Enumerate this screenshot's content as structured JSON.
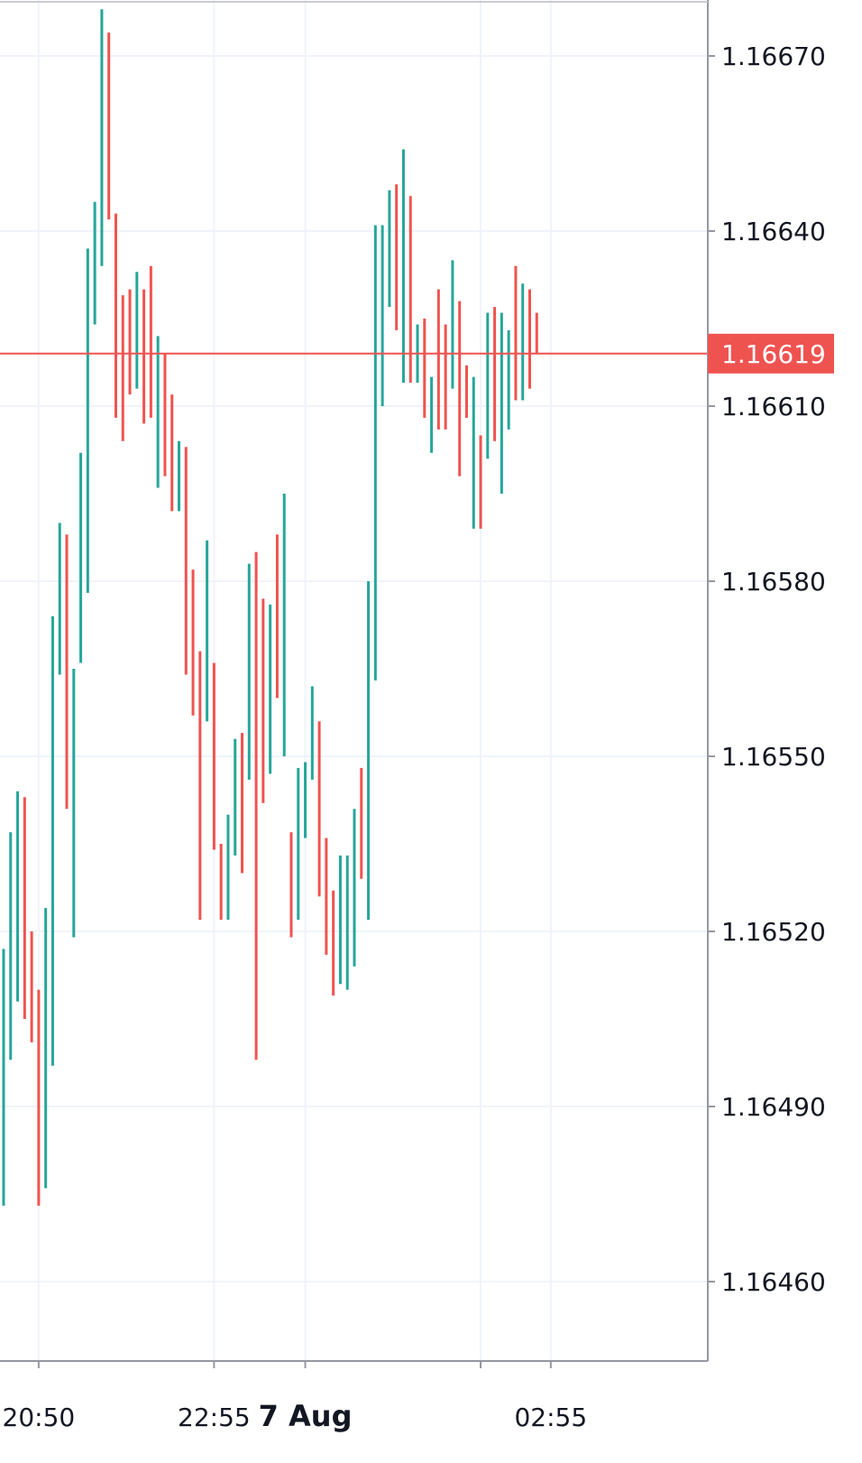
{
  "chart_data": {
    "type": "bar",
    "subtype": "ohlc",
    "y_axis": {
      "position": "right",
      "ticks": [
        "1.16670",
        "1.16640",
        "1.16610",
        "1.16580",
        "1.16550",
        "1.16520",
        "1.16490",
        "1.16460"
      ],
      "range": [
        1.16447,
        1.16679
      ]
    },
    "x_axis": {
      "labels": [
        {
          "label": "20:50",
          "bar_index": 5,
          "bold": false
        },
        {
          "label": "22:55",
          "bar_index": 30,
          "bold": false
        },
        {
          "label": "7 Aug",
          "bar_index": 43,
          "bold": true
        },
        {
          "label": "02:55",
          "bar_index": 78,
          "bold": false
        }
      ],
      "extra_gridlines_bar_index": [
        68
      ]
    },
    "current_price": {
      "label": "1.16619",
      "value": 1.16619
    },
    "colors": {
      "up": "#26a69a",
      "down": "#ef5350",
      "grid": "#f0f3fa",
      "axis": "#9598a1",
      "text": "#131722",
      "price_line": "#ef5350",
      "price_label_bg": "#ef5350",
      "price_label_text": "#ffffff"
    },
    "grid": true,
    "bars": [
      {
        "d": 1,
        "h": 1.16517,
        "l": 1.16473
      },
      {
        "d": 1,
        "h": 1.16537,
        "l": 1.16498
      },
      {
        "d": 1,
        "h": 1.16544,
        "l": 1.16508
      },
      {
        "d": -1,
        "h": 1.16543,
        "l": 1.16505
      },
      {
        "d": -1,
        "h": 1.1652,
        "l": 1.16501
      },
      {
        "d": -1,
        "h": 1.1651,
        "l": 1.16473
      },
      {
        "d": 1,
        "h": 1.16524,
        "l": 1.16476
      },
      {
        "d": 1,
        "h": 1.16574,
        "l": 1.16497
      },
      {
        "d": 1,
        "h": 1.1659,
        "l": 1.16564
      },
      {
        "d": -1,
        "h": 1.16588,
        "l": 1.16541
      },
      {
        "d": 1,
        "h": 1.16565,
        "l": 1.16519
      },
      {
        "d": 1,
        "h": 1.16602,
        "l": 1.16566
      },
      {
        "d": 1,
        "h": 1.16637,
        "l": 1.16578
      },
      {
        "d": 1,
        "h": 1.16645,
        "l": 1.16624
      },
      {
        "d": 1,
        "h": 1.16678,
        "l": 1.16634
      },
      {
        "d": -1,
        "h": 1.16674,
        "l": 1.16642
      },
      {
        "d": -1,
        "h": 1.16643,
        "l": 1.16608
      },
      {
        "d": -1,
        "h": 1.16629,
        "l": 1.16604
      },
      {
        "d": -1,
        "h": 1.1663,
        "l": 1.16612
      },
      {
        "d": 1,
        "h": 1.16633,
        "l": 1.16613
      },
      {
        "d": -1,
        "h": 1.1663,
        "l": 1.16607
      },
      {
        "d": -1,
        "h": 1.16634,
        "l": 1.16608
      },
      {
        "d": 1,
        "h": 1.16622,
        "l": 1.16596
      },
      {
        "d": -1,
        "h": 1.16619,
        "l": 1.16598
      },
      {
        "d": -1,
        "h": 1.16612,
        "l": 1.16592
      },
      {
        "d": 1,
        "h": 1.16604,
        "l": 1.16592
      },
      {
        "d": -1,
        "h": 1.16603,
        "l": 1.16564
      },
      {
        "d": -1,
        "h": 1.16582,
        "l": 1.16557
      },
      {
        "d": -1,
        "h": 1.16568,
        "l": 1.16522
      },
      {
        "d": 1,
        "h": 1.16587,
        "l": 1.16556
      },
      {
        "d": -1,
        "h": 1.16566,
        "l": 1.16534
      },
      {
        "d": -1,
        "h": 1.16535,
        "l": 1.16522
      },
      {
        "d": 1,
        "h": 1.1654,
        "l": 1.16522
      },
      {
        "d": 1,
        "h": 1.16553,
        "l": 1.16533
      },
      {
        "d": -1,
        "h": 1.16554,
        "l": 1.1653
      },
      {
        "d": 1,
        "h": 1.16583,
        "l": 1.16546
      },
      {
        "d": -1,
        "h": 1.16585,
        "l": 1.16498
      },
      {
        "d": -1,
        "h": 1.16577,
        "l": 1.16542
      },
      {
        "d": 1,
        "h": 1.16576,
        "l": 1.16547
      },
      {
        "d": -1,
        "h": 1.16588,
        "l": 1.1656
      },
      {
        "d": 1,
        "h": 1.16595,
        "l": 1.1655
      },
      {
        "d": -1,
        "h": 1.16537,
        "l": 1.16519
      },
      {
        "d": 1,
        "h": 1.16548,
        "l": 1.16522
      },
      {
        "d": 1,
        "h": 1.16549,
        "l": 1.16536
      },
      {
        "d": 1,
        "h": 1.16562,
        "l": 1.16546
      },
      {
        "d": -1,
        "h": 1.16556,
        "l": 1.16526
      },
      {
        "d": -1,
        "h": 1.16536,
        "l": 1.16516
      },
      {
        "d": -1,
        "h": 1.16527,
        "l": 1.16509
      },
      {
        "d": 1,
        "h": 1.16533,
        "l": 1.16511
      },
      {
        "d": 1,
        "h": 1.16533,
        "l": 1.1651
      },
      {
        "d": 1,
        "h": 1.16541,
        "l": 1.16514
      },
      {
        "d": -1,
        "h": 1.16548,
        "l": 1.16529
      },
      {
        "d": 1,
        "h": 1.1658,
        "l": 1.16522
      },
      {
        "d": 1,
        "h": 1.16641,
        "l": 1.16563
      },
      {
        "d": 1,
        "h": 1.16641,
        "l": 1.1661
      },
      {
        "d": 1,
        "h": 1.16647,
        "l": 1.16627
      },
      {
        "d": -1,
        "h": 1.16648,
        "l": 1.16623
      },
      {
        "d": 1,
        "h": 1.16654,
        "l": 1.16614
      },
      {
        "d": -1,
        "h": 1.16646,
        "l": 1.16614
      },
      {
        "d": 1,
        "h": 1.16624,
        "l": 1.16614
      },
      {
        "d": -1,
        "h": 1.16625,
        "l": 1.16608
      },
      {
        "d": 1,
        "h": 1.16615,
        "l": 1.16602
      },
      {
        "d": -1,
        "h": 1.1663,
        "l": 1.16606
      },
      {
        "d": -1,
        "h": 1.16624,
        "l": 1.16606
      },
      {
        "d": 1,
        "h": 1.16635,
        "l": 1.16613
      },
      {
        "d": -1,
        "h": 1.16628,
        "l": 1.16598
      },
      {
        "d": -1,
        "h": 1.16617,
        "l": 1.16608
      },
      {
        "d": 1,
        "h": 1.16615,
        "l": 1.16589
      },
      {
        "d": -1,
        "h": 1.16605,
        "l": 1.16589
      },
      {
        "d": 1,
        "h": 1.16626,
        "l": 1.16601
      },
      {
        "d": -1,
        "h": 1.16627,
        "l": 1.16604
      },
      {
        "d": 1,
        "h": 1.16626,
        "l": 1.16595
      },
      {
        "d": 1,
        "h": 1.16623,
        "l": 1.16606
      },
      {
        "d": -1,
        "h": 1.16634,
        "l": 1.16611
      },
      {
        "d": 1,
        "h": 1.16631,
        "l": 1.16611
      },
      {
        "d": -1,
        "h": 1.1663,
        "l": 1.16613
      },
      {
        "d": -1,
        "h": 1.16626,
        "l": 1.16619
      }
    ]
  }
}
